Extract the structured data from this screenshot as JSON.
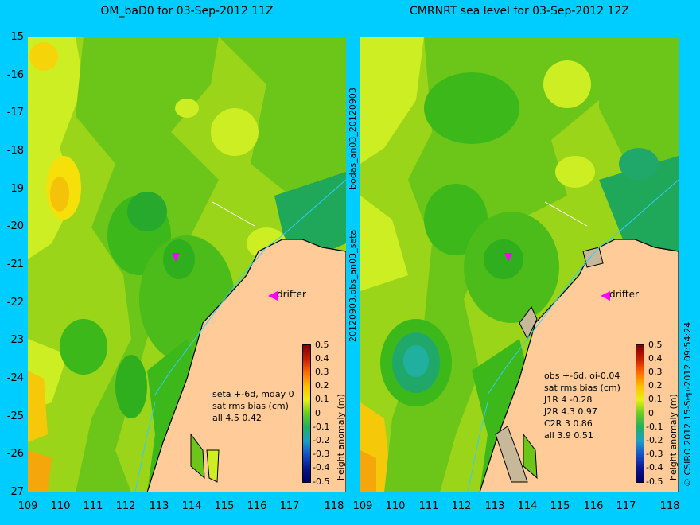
{
  "titles": {
    "left": "OM_baD0 for 03-Sep-2012 11Z",
    "right": "CMRNRT sea level  for 03-Sep-2012 12Z"
  },
  "axes": {
    "y_ticks": [
      "-15",
      "-16",
      "-17",
      "-18",
      "-19",
      "-20",
      "-21",
      "-22",
      "-23",
      "-24",
      "-25",
      "-26",
      "-27"
    ],
    "x_ticks": [
      "109",
      "110",
      "111",
      "112",
      "113",
      "114",
      "115",
      "116",
      "117",
      "118"
    ]
  },
  "side_labels": {
    "upper": "bodas_an03_20120903",
    "lower": "20120903.obs_an03_seta",
    "credit": "© CSIRO 2012  15-Sep-2012 09:54:24"
  },
  "drifter_label": "drifter",
  "colorbar": {
    "label": "height anomaly (m)",
    "ticks": [
      "0.5",
      "0.4",
      "0.3",
      "0.2",
      "0.1",
      "0",
      "-0.1",
      "-0.2",
      "-0.3",
      "-0.4",
      "-0.5"
    ]
  },
  "stats_left": [
    "seta +-6d, mday 0",
    "sat rms bias (cm)",
    "all 4.5 0.42"
  ],
  "stats_right": [
    "obs +-6d, oi-0.04",
    "sat rms bias (cm)",
    "J1R   4 -0.28",
    "J2R   4.3 0.97",
    "C2R   3 0.86",
    "all 3.9 0.51"
  ],
  "colors": {
    "background": "#00cdff",
    "land": "#ffcc99",
    "coast": "#000000",
    "drifter": "#ff00ff"
  }
}
